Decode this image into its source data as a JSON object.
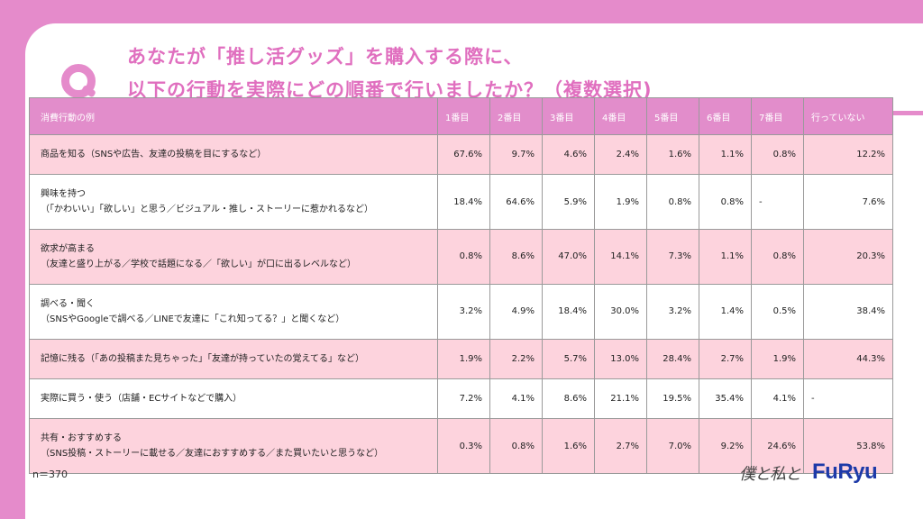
{
  "title": {
    "line1": "あなたが「推し活グッズ」を購入する際に、",
    "line2": "以下の行動を実際にどの順番で行いましたか？（複数選択)"
  },
  "table": {
    "headers": [
      "消費行動の例",
      "1番目",
      "2番目",
      "3番目",
      "4番目",
      "5番目",
      "6番目",
      "7番目",
      "行っていない"
    ],
    "rows": [
      {
        "line1": "商品を知る（SNSや広告、友達の投稿を目にするなど）",
        "line2": "",
        "values": [
          "67.6%",
          "9.7%",
          "4.6%",
          "2.4%",
          "1.6%",
          "1.1%",
          "0.8%",
          "12.2%"
        ]
      },
      {
        "line1": "興味を持つ",
        "line2": "（「かわいい」「欲しい」と思う／ビジュアル・推し・ストーリーに惹かれるなど）",
        "values": [
          "18.4%",
          "64.6%",
          "5.9%",
          "1.9%",
          "0.8%",
          "0.8%",
          "-",
          "7.6%"
        ]
      },
      {
        "line1": "欲求が高まる",
        "line2": "（友達と盛り上がる／学校で話題になる／「欲しい」が口に出るレベルなど）",
        "values": [
          "0.8%",
          "8.6%",
          "47.0%",
          "14.1%",
          "7.3%",
          "1.1%",
          "0.8%",
          "20.3%"
        ]
      },
      {
        "line1": "調べる・聞く",
        "line2": "（SNSやGoogleで調べる／LINEで友達に「これ知ってる？」と聞くなど）",
        "values": [
          "3.2%",
          "4.9%",
          "18.4%",
          "30.0%",
          "3.2%",
          "1.4%",
          "0.5%",
          "38.4%"
        ]
      },
      {
        "line1": "記憶に残る（「あの投稿また見ちゃった」「友達が持っていたの覚えてる」など）",
        "line2": "",
        "values": [
          "1.9%",
          "2.2%",
          "5.7%",
          "13.0%",
          "28.4%",
          "2.7%",
          "1.9%",
          "44.3%"
        ]
      },
      {
        "line1": "実際に買う・使う（店舗・ECサイトなどで購入）",
        "line2": "",
        "values": [
          "7.2%",
          "4.1%",
          "8.6%",
          "21.1%",
          "19.5%",
          "35.4%",
          "4.1%",
          "-"
        ]
      },
      {
        "line1": "共有・おすすめする",
        "line2": "（SNS投稿・ストーリーに載せる／友達におすすめする／また買いたいと思うなど）",
        "values": [
          "0.3%",
          "0.8%",
          "1.6%",
          "2.7%",
          "7.0%",
          "9.2%",
          "24.6%",
          "53.8%"
        ]
      }
    ]
  },
  "footer": {
    "n_label": "n＝370",
    "signature": "僕と私と",
    "logo": "FuRyu"
  },
  "colors": {
    "background_pink": "#e58bcb",
    "header_pink": "#e28dcb",
    "row_pink": "#fdd3dd",
    "title_pink": "#e06fbf",
    "logo_blue": "#1d3aa8"
  },
  "icons": [
    "q-icon"
  ]
}
